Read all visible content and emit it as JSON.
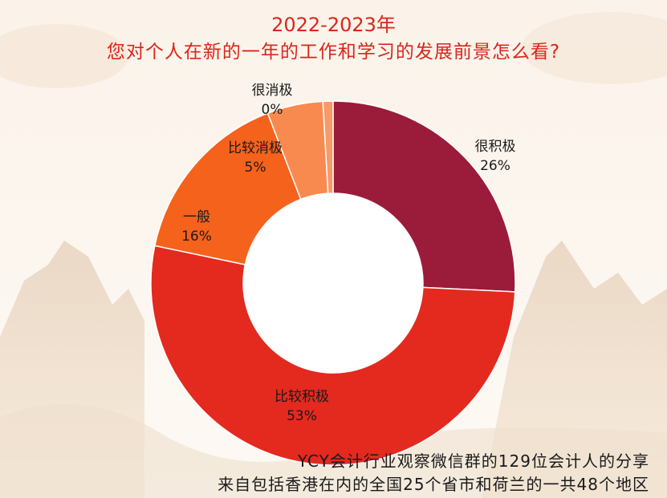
{
  "header": {
    "title": "2022-2023年",
    "subtitle": "您对个人在新的一年的工作和学习的发展前景怎么看?"
  },
  "footer": {
    "line1": "YCY会计行业观察微信群的129位会计人的分享",
    "line2": "来自包括香港在内的全国25个省市和荷兰的一共48个地区"
  },
  "colors": {
    "title": "#d9261c",
    "background": "#fdf8f2"
  },
  "chart_data": {
    "type": "pie",
    "title": "2022-2023年",
    "subtitle": "您对个人在新的一年的工作和学习的发展前景怎么看?",
    "donut": true,
    "slices": [
      {
        "label": "很积极",
        "percent_label": "26%",
        "value": 26,
        "color": "#9b1b3a"
      },
      {
        "label": "比较积极",
        "percent_label": "53%",
        "value": 53,
        "color": "#e4291f"
      },
      {
        "label": "一般",
        "percent_label": "16%",
        "value": 16,
        "color": "#f5621c"
      },
      {
        "label": "比较消极",
        "percent_label": "5%",
        "value": 5,
        "color": "#f88a4f"
      },
      {
        "label": "很消极",
        "percent_label": "0%",
        "value": 0,
        "color": "#f79a68"
      }
    ],
    "legend": "none"
  }
}
